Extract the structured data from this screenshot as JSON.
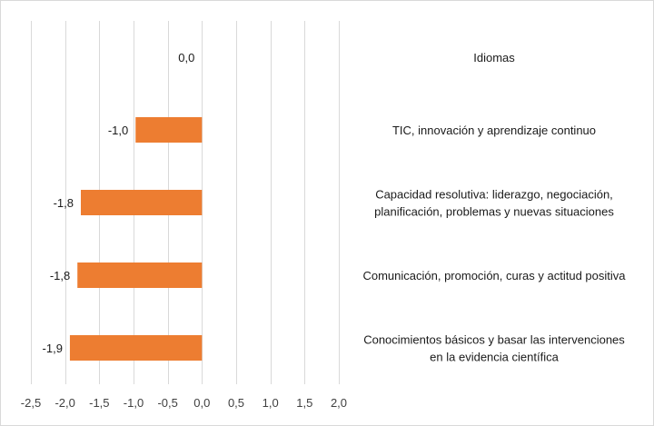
{
  "chart_data": {
    "type": "bar",
    "orientation": "horizontal",
    "categories": [
      "Idiomas",
      "TIC, innovación y aprendizaje continuo",
      "Capacidad resolutiva: liderazgo, negociación, planificación, problemas y nuevas situaciones",
      "Comunicación, promoción, curas y actitud positiva",
      "Conocimientos básicos y basar las intervenciones en la evidencia científica"
    ],
    "category_lines": [
      [
        "Idiomas"
      ],
      [
        "TIC, innovación y aprendizaje continuo"
      ],
      [
        "Capacidad resolutiva: liderazgo, negociación,",
        "planificación, problemas y nuevas situaciones"
      ],
      [
        "Comunicación, promoción, curas y actitud positiva"
      ],
      [
        "Conocimientos básicos y basar las intervenciones",
        "en la evidencia científica"
      ]
    ],
    "values": [
      0.0,
      -0.97,
      -1.77,
      -1.82,
      -1.93
    ],
    "data_labels": [
      "0,0",
      "-1,0",
      "-1,8",
      "-1,8",
      "-1,9"
    ],
    "xlim": [
      -2.5,
      2.0
    ],
    "xticks": [
      -2.5,
      -2.0,
      -1.5,
      -1.0,
      -0.5,
      0.0,
      0.5,
      1.0,
      1.5,
      2.0
    ],
    "xtick_labels": [
      "-2,5",
      "-2,0",
      "-1,5",
      "-1,0",
      "-0,5",
      "0,0",
      "0,5",
      "1,0",
      "1,5",
      "2,0"
    ],
    "title": "",
    "xlabel": "",
    "ylabel": "",
    "grid": "vertical",
    "legend": "none",
    "bar_color": "#ED7D31",
    "gridline_color": "#D9D9D9"
  }
}
